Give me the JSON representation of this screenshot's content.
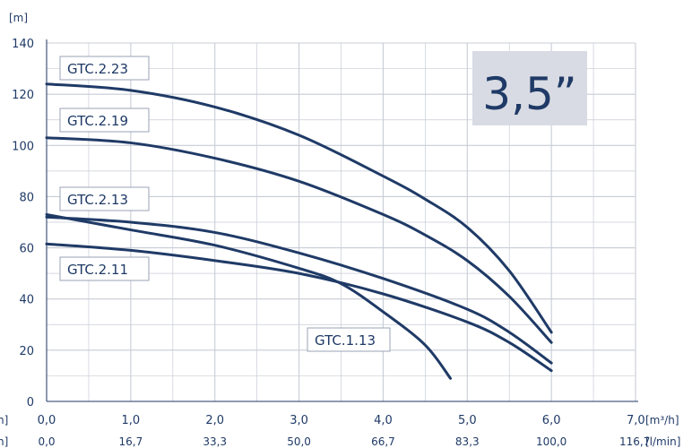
{
  "chart_data": {
    "type": "line",
    "badge": "3,5”",
    "y_unit": "[m]",
    "ylim": [
      0,
      140
    ],
    "xlim": [
      0,
      7
    ],
    "yticks": [
      0,
      20,
      40,
      60,
      80,
      100,
      120,
      140
    ],
    "ytick_labels": [
      "0",
      "20",
      "40",
      "60",
      "80",
      "100",
      "120",
      "140"
    ],
    "xticks": [
      0,
      1,
      2,
      3,
      4,
      5,
      6,
      7
    ],
    "xtick_labels": [
      "0,0",
      "1,0",
      "2,0",
      "3,0",
      "4,0",
      "5,0",
      "6,0",
      "7,0"
    ],
    "x_unit": "[m³/h]",
    "x2tick_labels": [
      "0,0",
      "16,7",
      "33,3",
      "50,0",
      "66,7",
      "83,3",
      "100,0",
      "116,7"
    ],
    "x2_unit": "[l/min]",
    "left_cut_labels": [
      "h]",
      "n]"
    ],
    "grid": true,
    "colors": {
      "curve": "#1f3a66",
      "grid": "#c8ccd6",
      "badge_bg": "#d8dbe3",
      "label_border": "#9aa3b5"
    },
    "series": [
      {
        "name": "GTC.2.23",
        "points": [
          [
            0,
            124
          ],
          [
            1,
            121.5
          ],
          [
            2,
            115
          ],
          [
            3,
            104
          ],
          [
            4,
            88
          ],
          [
            4.5,
            79
          ],
          [
            5,
            68
          ],
          [
            5.5,
            51
          ],
          [
            6,
            27
          ]
        ]
      },
      {
        "name": "GTC.2.19",
        "points": [
          [
            0,
            103
          ],
          [
            1,
            101
          ],
          [
            2,
            95
          ],
          [
            3,
            86
          ],
          [
            4,
            73
          ],
          [
            4.5,
            65
          ],
          [
            5,
            55
          ],
          [
            5.5,
            41
          ],
          [
            6,
            23
          ]
        ]
      },
      {
        "name": "GTC.2.13",
        "points": [
          [
            0,
            72
          ],
          [
            1,
            70
          ],
          [
            2,
            66
          ],
          [
            3,
            58
          ],
          [
            4,
            48
          ],
          [
            5,
            36
          ],
          [
            5.5,
            27
          ],
          [
            6,
            15
          ]
        ]
      },
      {
        "name": "GTC.2.11",
        "points": [
          [
            0,
            61.5
          ],
          [
            1,
            59
          ],
          [
            2,
            55
          ],
          [
            3,
            50
          ],
          [
            4,
            42
          ],
          [
            5,
            31
          ],
          [
            5.5,
            23
          ],
          [
            6,
            12
          ]
        ]
      },
      {
        "name": "GTC.1.13",
        "points": [
          [
            0,
            73
          ],
          [
            1,
            67
          ],
          [
            2,
            61
          ],
          [
            3,
            52
          ],
          [
            3.5,
            46
          ],
          [
            4,
            35
          ],
          [
            4.5,
            22
          ],
          [
            4.8,
            9
          ]
        ]
      }
    ]
  }
}
